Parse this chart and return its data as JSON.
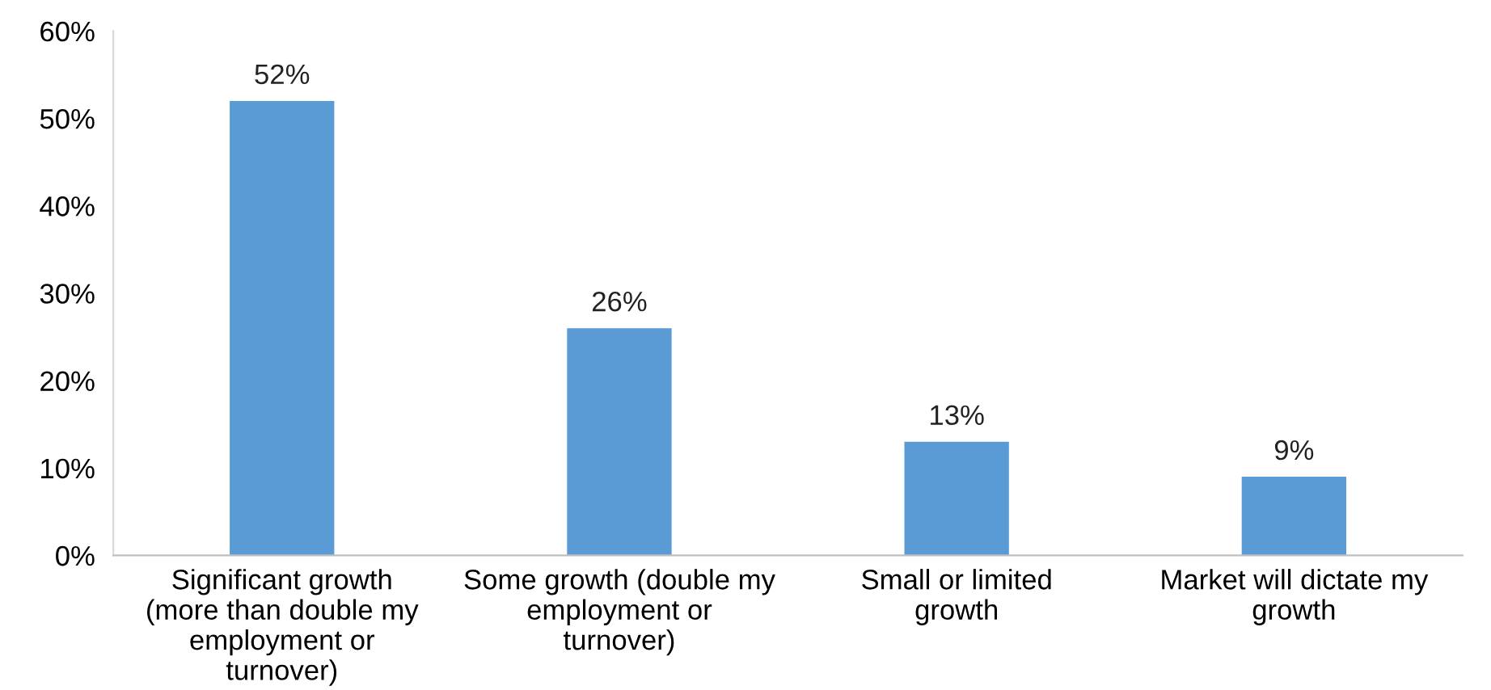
{
  "chart_data": {
    "type": "bar",
    "categories": [
      "Significant growth (more than double my employment or turnover)",
      "Some growth (double my employment or turnover)",
      "Small or limited growth",
      "Market will dictate my growth"
    ],
    "values": [
      52,
      26,
      13,
      9
    ],
    "value_labels": [
      "52%",
      "26%",
      "13%",
      "9%"
    ],
    "color": "#5b9bd5",
    "ylim": [
      0,
      60
    ],
    "yticks": [
      {
        "value": 0,
        "label": "0%"
      },
      {
        "value": 10,
        "label": "10%"
      },
      {
        "value": 20,
        "label": "20%"
      },
      {
        "value": 30,
        "label": "30%"
      },
      {
        "value": 40,
        "label": "40%"
      },
      {
        "value": 50,
        "label": "50%"
      },
      {
        "value": 60,
        "label": "60%"
      }
    ],
    "grid": false,
    "legend": false
  }
}
